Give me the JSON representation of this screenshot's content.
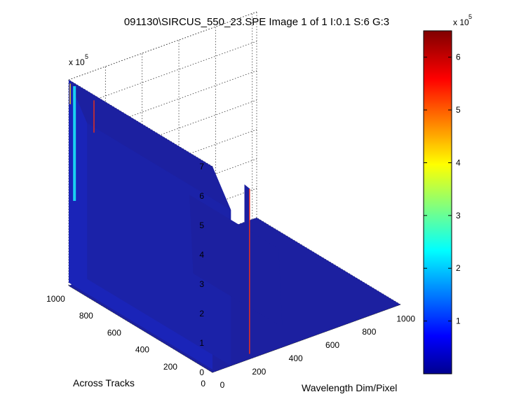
{
  "chart_data": {
    "type": "surface",
    "title": "091130\\SIRCUS_550_23.SPE  Image 1 of 1  I:0.1  S:6  G:3",
    "xlabel": "Wavelength Dim/Pixel",
    "ylabel": "Across Tracks",
    "zlabel": "",
    "z_exponent_label": "x 10",
    "z_exponent_power": "5",
    "colorbar_exponent_label": "x 10",
    "colorbar_exponent_power": "5",
    "xlim": [
      0,
      1024
    ],
    "ylim": [
      0,
      1024
    ],
    "zlim": [
      0,
      7
    ],
    "x_ticks": [
      "0",
      "200",
      "400",
      "600",
      "800",
      "1000"
    ],
    "y_ticks": [
      "0",
      "200",
      "400",
      "600",
      "800",
      "1000"
    ],
    "z_ticks": [
      "0",
      "1",
      "2",
      "3",
      "4",
      "5",
      "6",
      "7"
    ],
    "colorbar_ticks": [
      "1",
      "2",
      "3",
      "4",
      "5",
      "6"
    ],
    "colorbar_range": [
      0,
      6.5
    ],
    "colormap": "jet",
    "grid": true,
    "surface_color": "#1c20a0",
    "features": [
      {
        "name": "wall-1",
        "x_range": [
          0,
          100
        ],
        "y_range": [
          0,
          1024
        ],
        "height_top": 7.0,
        "height_bottom": 5.3
      },
      {
        "name": "wall-2",
        "x_range": [
          360,
          380
        ],
        "y_range": [
          0,
          1024
        ],
        "height": 3.4
      },
      {
        "name": "spike",
        "x": 440,
        "y": 0,
        "height": 4.4
      }
    ]
  }
}
